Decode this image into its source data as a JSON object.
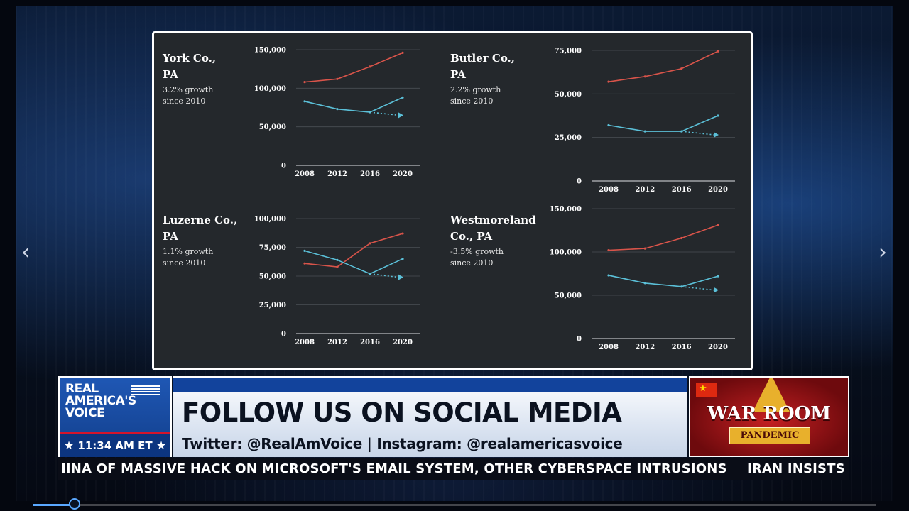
{
  "slide": {
    "counties": [
      {
        "name": "York Co.,\nPA",
        "growth": "3.2% growth\nsince 2010"
      },
      {
        "name": "Butler Co.,\nPA",
        "growth": "2.2% growth\nsince 2010"
      },
      {
        "name": "Luzerne Co.,\nPA",
        "growth": "1.1% growth\nsince 2010"
      },
      {
        "name": "Westmoreland\nCo., PA",
        "growth": "-3.5% growth\nsince 2010"
      }
    ],
    "colors": {
      "red_series": "#d9544a",
      "blue_series": "#5bc0d8",
      "grid": "#4a4f55",
      "axis": "#b9bcc0",
      "panel_bg": "#24282c"
    }
  },
  "chart_data": [
    {
      "type": "line",
      "title": "York Co., PA",
      "x": [
        "2008",
        "2012",
        "2016",
        "2020"
      ],
      "ylim": [
        0,
        150000
      ],
      "yticks": [
        "0",
        "50,000",
        "100,000",
        "150,000"
      ],
      "series": [
        {
          "values": [
            108000,
            112000,
            128000,
            146000
          ]
        },
        {
          "values": [
            83000,
            73000,
            69000,
            88000
          ]
        }
      ],
      "projection": [
        69000,
        65000
      ]
    },
    {
      "type": "line",
      "title": "Butler Co., PA",
      "x": [
        "2008",
        "2012",
        "2016",
        "2020"
      ],
      "ylim": [
        0,
        75000
      ],
      "yticks": [
        "0",
        "25,000",
        "50,000",
        "75,000"
      ],
      "series": [
        {
          "values": [
            57000,
            60000,
            64500,
            74500
          ]
        },
        {
          "values": [
            32000,
            28500,
            28500,
            37500
          ]
        }
      ],
      "projection": [
        28500,
        26500
      ]
    },
    {
      "type": "line",
      "title": "Luzerne Co., PA",
      "x": [
        "2008",
        "2012",
        "2016",
        "2020"
      ],
      "ylim": [
        0,
        100000
      ],
      "yticks": [
        "0",
        "25,000",
        "50,000",
        "75,000",
        "100,000"
      ],
      "series": [
        {
          "values": [
            61000,
            58000,
            78500,
            87000
          ]
        },
        {
          "values": [
            72000,
            64000,
            52000,
            65000
          ]
        }
      ],
      "projection": [
        52000,
        49000
      ]
    },
    {
      "type": "line",
      "title": "Westmoreland Co., PA",
      "x": [
        "2008",
        "2012",
        "2016",
        "2020"
      ],
      "ylim": [
        0,
        150000
      ],
      "yticks": [
        "0",
        "50,000",
        "100,000",
        "150,000"
      ],
      "series": [
        {
          "values": [
            102000,
            104000,
            116000,
            131000
          ]
        },
        {
          "values": [
            73000,
            64000,
            60000,
            72000
          ]
        }
      ],
      "projection": [
        60000,
        56000
      ]
    }
  ],
  "lower_third": {
    "network_line1": "REAL",
    "network_line2": "AMERICA'S",
    "network_line3": "VOICE",
    "time": "11:34 AM ET",
    "headline": "FOLLOW US ON SOCIAL MEDIA",
    "social": "Twitter: @RealAmVoice | Instagram: @realamericasvoice",
    "show_title": "WAR ROOM",
    "show_subtitle": "PANDEMIC"
  },
  "crawl": {
    "text": "IINA OF MASSIVE HACK ON MICROSOFT'S EMAIL SYSTEM, OTHER CYBERSPACE INTRUSIONS",
    "text2": "IRAN INSISTS"
  },
  "player": {
    "progress": 0.05
  },
  "icons": {
    "prev": "chevron-left-icon",
    "next": "chevron-right-icon",
    "star": "star-icon"
  }
}
